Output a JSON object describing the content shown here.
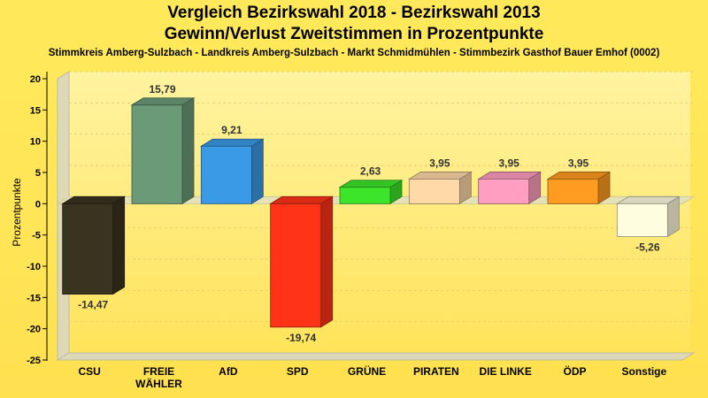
{
  "title": "Vergleich Bezirkswahl 2018 - Bezirkswahl 2013",
  "title2": "Gewinn/Verlust Zweitstimmen in Prozentpunkte",
  "subtitle": "Stimmkreis Amberg-Sulzbach - Landkreis Amberg-Sulzbach - Markt Schmidmühlen - Stimmbezirk Gasthof Bauer Emhof (0002)",
  "chart_data": {
    "type": "bar",
    "ylabel": "Prozentpunkte",
    "xlabel": "",
    "ylim": [
      -25,
      20
    ],
    "yticks": [
      20,
      15,
      10,
      5,
      0,
      -5,
      -10,
      -15,
      -20,
      -25
    ],
    "grid": true,
    "categories": [
      [
        "CSU"
      ],
      [
        "FREIE",
        "WÄHLER"
      ],
      [
        "AfD"
      ],
      [
        "SPD"
      ],
      [
        "GRÜNE"
      ],
      [
        "PIRATEN"
      ],
      [
        "DIE LINKE"
      ],
      [
        "ÖDP"
      ],
      [
        "Sonstige"
      ]
    ],
    "values": [
      -14.47,
      15.79,
      9.21,
      -19.74,
      2.63,
      3.95,
      3.95,
      3.95,
      -5.26
    ],
    "value_labels": [
      "-14,47",
      "15,79",
      "9,21",
      "-19,74",
      "2,63",
      "3,95",
      "3,95",
      "3,95",
      "-5,26"
    ],
    "colors": [
      "#3a3320",
      "#6b9a78",
      "#3a9ae6",
      "#ff3318",
      "#3ce52a",
      "#ffd9a8",
      "#ff9ec0",
      "#ff9b20",
      "#fffde0"
    ]
  }
}
